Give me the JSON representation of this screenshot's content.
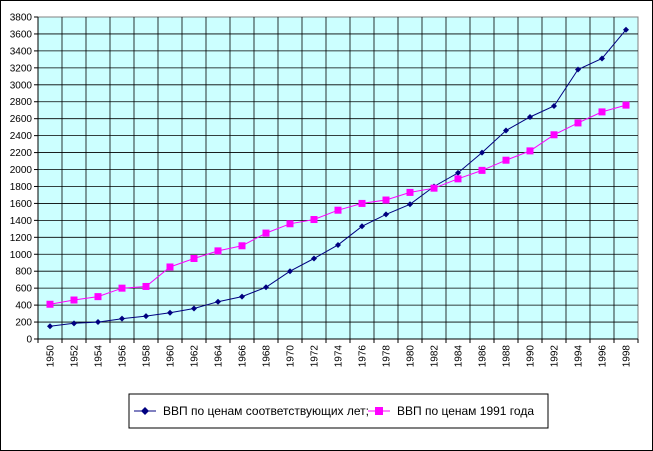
{
  "chart_data": {
    "type": "line",
    "title": "",
    "xlabel": "",
    "ylabel": "",
    "ylim": [
      0,
      3800
    ],
    "ytick_step": 200,
    "grid": true,
    "legend_position": "bottom",
    "plot_background": "#ccffff",
    "x": [
      1950,
      1952,
      1954,
      1956,
      1958,
      1960,
      1962,
      1964,
      1966,
      1968,
      1970,
      1972,
      1974,
      1976,
      1978,
      1980,
      1982,
      1984,
      1986,
      1988,
      1990,
      1992,
      1994,
      1996,
      1998
    ],
    "series": [
      {
        "name": "ВВП по ценам соответствующих лет;",
        "color": "#000080",
        "marker": "diamond",
        "values": [
          150,
          185,
          200,
          240,
          270,
          310,
          360,
          440,
          500,
          610,
          800,
          950,
          1110,
          1330,
          1470,
          1590,
          1800,
          1960,
          2200,
          2460,
          2620,
          2750,
          3180,
          3310,
          3650
        ]
      },
      {
        "name": "ВВП по ценам 1991 года",
        "color": "#ff00ff",
        "marker": "square",
        "values": [
          410,
          460,
          500,
          600,
          620,
          850,
          950,
          1040,
          1100,
          1250,
          1360,
          1410,
          1520,
          1600,
          1640,
          1730,
          1780,
          1890,
          1990,
          2110,
          2220,
          2410,
          2550,
          2680,
          2760
        ]
      }
    ]
  }
}
